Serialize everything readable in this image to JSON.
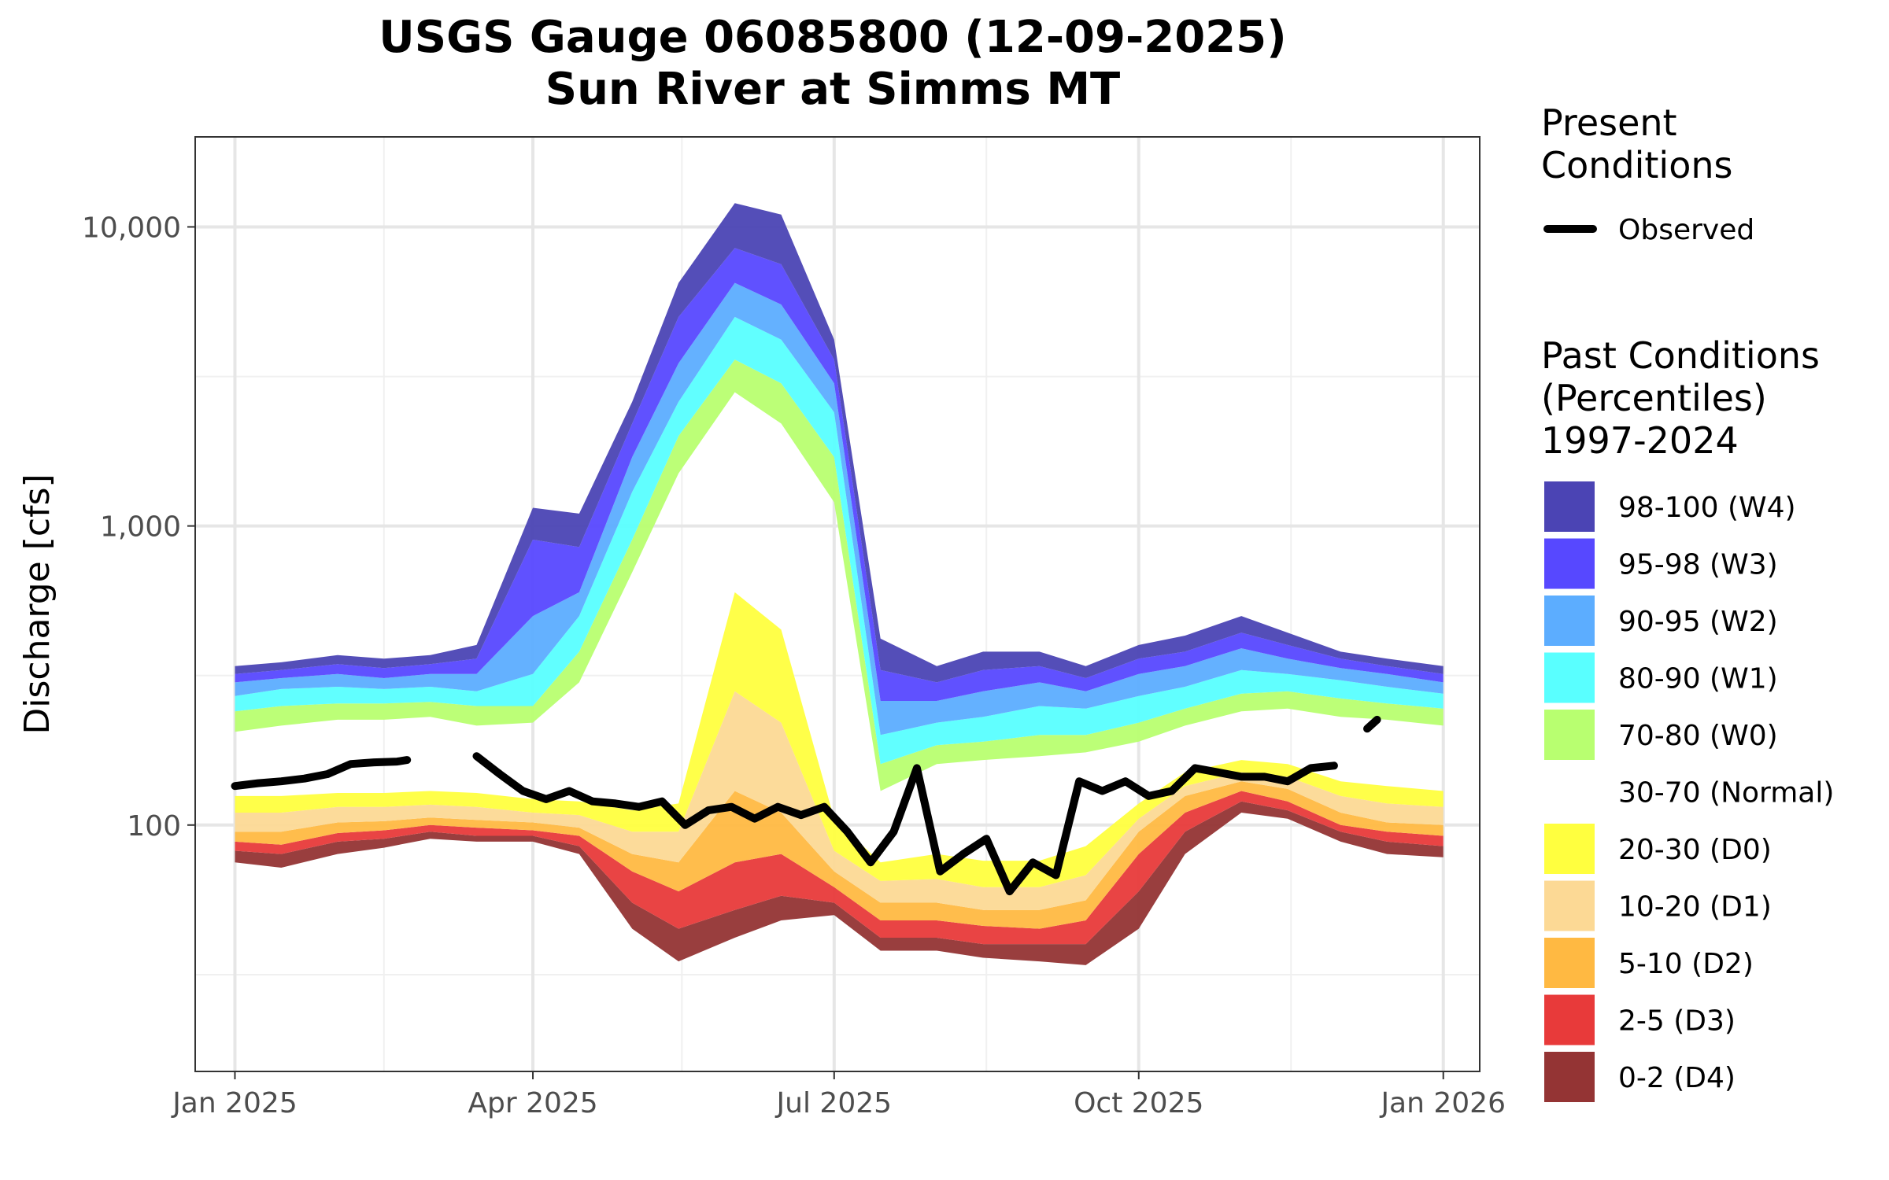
{
  "chart_data": {
    "type": "area",
    "title": "USGS Gauge 06085800 (12-09-2025)",
    "subtitle": "Sun River at Simms MT",
    "xlabel": "",
    "ylabel": "Discharge [cfs]",
    "y_scale": "log",
    "ylim": [
      15,
      20000
    ],
    "xlim": [
      "2024-12-20",
      "2026-01-12"
    ],
    "grid": true,
    "x_ticks": [
      {
        "date": "2025-01-01",
        "label": "Jan 2025"
      },
      {
        "date": "2025-04-01",
        "label": "Apr 2025"
      },
      {
        "date": "2025-07-01",
        "label": "Jul 2025"
      },
      {
        "date": "2025-10-01",
        "label": "Oct 2025"
      },
      {
        "date": "2026-01-01",
        "label": "Jan 2026"
      }
    ],
    "x_minor_ticks": [
      "2025-02-15",
      "2025-05-16",
      "2025-08-16",
      "2025-11-16"
    ],
    "y_ticks": [
      {
        "value": 100,
        "label": "100"
      },
      {
        "value": 1000,
        "label": "1,000"
      },
      {
        "value": 10000,
        "label": "10,000"
      }
    ],
    "y_minor_ticks": [
      31.6,
      316,
      3160
    ],
    "legend_placement": "right",
    "legend_present": {
      "title_lines": [
        "Present",
        "Conditions"
      ],
      "label": "Observed",
      "color": "#000000"
    },
    "legend_past": {
      "title_lines": [
        "Past Conditions",
        "(Percentiles)",
        "1997-2024"
      ],
      "items": [
        {
          "label": "98-100 (W4)",
          "color": "#4b44b4"
        },
        {
          "label": "95-98 (W3)",
          "color": "#5748ff"
        },
        {
          "label": "90-95 (W2)",
          "color": "#5cadff"
        },
        {
          "label": "80-90 (W1)",
          "color": "#59ffff"
        },
        {
          "label": "70-80 (W0)",
          "color": "#b8ff70"
        },
        {
          "label": "30-70 (Normal)",
          "color": "#ffffff"
        },
        {
          "label": "20-30 (D0)",
          "color": "#ffff3f"
        },
        {
          "label": "10-20 (D1)",
          "color": "#fcd995"
        },
        {
          "label": "5-10 (D2)",
          "color": "#ffb942"
        },
        {
          "label": "2-5 (D3)",
          "color": "#e83a3a"
        },
        {
          "label": "0-2 (D4)",
          "color": "#943434"
        }
      ]
    },
    "percentile_bands": {
      "x": [
        "2025-01-01",
        "2025-01-15",
        "2025-02-01",
        "2025-02-15",
        "2025-03-01",
        "2025-03-15",
        "2025-04-01",
        "2025-04-15",
        "2025-05-01",
        "2025-05-15",
        "2025-06-01",
        "2025-06-15",
        "2025-07-01",
        "2025-07-15",
        "2025-08-01",
        "2025-08-15",
        "2025-09-01",
        "2025-09-15",
        "2025-10-01",
        "2025-10-15",
        "2025-11-01",
        "2025-11-15",
        "2025-12-01",
        "2025-12-15",
        "2026-01-01"
      ],
      "p0": [
        75,
        72,
        80,
        84,
        90,
        88,
        88,
        80,
        45,
        35,
        42,
        48,
        50,
        38,
        38,
        36,
        35,
        34,
        45,
        80,
        110,
        105,
        88,
        80,
        78
      ],
      "p2": [
        82,
        80,
        88,
        90,
        95,
        92,
        92,
        85,
        55,
        45,
        52,
        58,
        55,
        42,
        42,
        40,
        40,
        40,
        60,
        95,
        120,
        112,
        95,
        88,
        85
      ],
      "p5": [
        88,
        86,
        94,
        96,
        100,
        98,
        96,
        92,
        70,
        60,
        75,
        80,
        62,
        48,
        48,
        46,
        45,
        48,
        80,
        110,
        130,
        120,
        100,
        95,
        92
      ],
      "p10": [
        95,
        95,
        102,
        103,
        106,
        104,
        102,
        98,
        80,
        75,
        130,
        110,
        70,
        55,
        55,
        52,
        52,
        56,
        95,
        125,
        140,
        132,
        110,
        102,
        100
      ],
      "p20": [
        110,
        110,
        115,
        115,
        117,
        115,
        110,
        108,
        95,
        95,
        280,
        220,
        82,
        65,
        66,
        62,
        62,
        68,
        105,
        135,
        150,
        145,
        125,
        118,
        115
      ],
      "p30": [
        125,
        125,
        128,
        128,
        130,
        128,
        122,
        120,
        112,
        118,
        600,
        450,
        105,
        75,
        80,
        76,
        76,
        85,
        118,
        150,
        165,
        160,
        140,
        135,
        130
      ],
      "p70": [
        205,
        215,
        225,
        225,
        230,
        215,
        220,
        300,
        700,
        1500,
        2800,
        2200,
        1200,
        130,
        160,
        165,
        170,
        175,
        190,
        215,
        240,
        245,
        230,
        225,
        215
      ],
      "p80": [
        240,
        250,
        255,
        255,
        258,
        250,
        250,
        380,
        900,
        2000,
        3600,
        3000,
        1700,
        160,
        185,
        190,
        200,
        200,
        220,
        245,
        275,
        280,
        265,
        255,
        245
      ],
      "p90": [
        270,
        285,
        290,
        285,
        290,
        280,
        320,
        500,
        1300,
        2600,
        5000,
        4200,
        2400,
        200,
        220,
        230,
        250,
        245,
        270,
        290,
        330,
        320,
        305,
        290,
        275
      ],
      "p95": [
        300,
        310,
        320,
        310,
        320,
        320,
        500,
        600,
        1700,
        3500,
        6500,
        5500,
        3000,
        260,
        260,
        280,
        300,
        280,
        320,
        340,
        390,
        360,
        335,
        320,
        300
      ],
      "p98": [
        320,
        330,
        345,
        335,
        345,
        360,
        900,
        850,
        2200,
        5000,
        8500,
        7500,
        3600,
        330,
        300,
        330,
        340,
        310,
        360,
        380,
        440,
        400,
        360,
        340,
        320
      ],
      "p100": [
        340,
        350,
        370,
        360,
        370,
        400,
        1150,
        1100,
        2600,
        6500,
        12000,
        11000,
        4200,
        420,
        340,
        380,
        380,
        340,
        400,
        430,
        500,
        440,
        380,
        360,
        340
      ]
    },
    "series": [
      {
        "name": "Observed",
        "color": "#000000",
        "segments": [
          {
            "x": [
              "2025-01-01",
              "2025-01-08",
              "2025-01-15",
              "2025-01-22",
              "2025-01-29",
              "2025-02-05",
              "2025-02-12",
              "2025-02-19",
              "2025-02-22"
            ],
            "y": [
              135,
              138,
              140,
              143,
              148,
              160,
              162,
              163,
              165
            ]
          },
          {
            "x": [
              "2025-03-15",
              "2025-03-22",
              "2025-03-29",
              "2025-04-05",
              "2025-04-12",
              "2025-04-19",
              "2025-04-26",
              "2025-05-03",
              "2025-05-10",
              "2025-05-17",
              "2025-05-24",
              "2025-05-31",
              "2025-06-07",
              "2025-06-14",
              "2025-06-21",
              "2025-06-28",
              "2025-07-05",
              "2025-07-12",
              "2025-07-19",
              "2025-07-26",
              "2025-08-02",
              "2025-08-09",
              "2025-08-16",
              "2025-08-23",
              "2025-08-30",
              "2025-09-06",
              "2025-09-13",
              "2025-09-20",
              "2025-09-27",
              "2025-10-04",
              "2025-10-11",
              "2025-10-18",
              "2025-10-25",
              "2025-11-01",
              "2025-11-08",
              "2025-11-15",
              "2025-11-22",
              "2025-11-29"
            ],
            "y": [
              170,
              148,
              130,
              122,
              130,
              120,
              118,
              115,
              120,
              100,
              112,
              115,
              105,
              115,
              108,
              115,
              95,
              75,
              95,
              155,
              70,
              80,
              90,
              60,
              75,
              68,
              140,
              130,
              140,
              125,
              130,
              155,
              150,
              145,
              145,
              140,
              155,
              158
            ]
          },
          {
            "x": [
              "2025-12-09",
              "2025-12-12"
            ],
            "y": [
              210,
              225
            ]
          }
        ]
      }
    ]
  }
}
